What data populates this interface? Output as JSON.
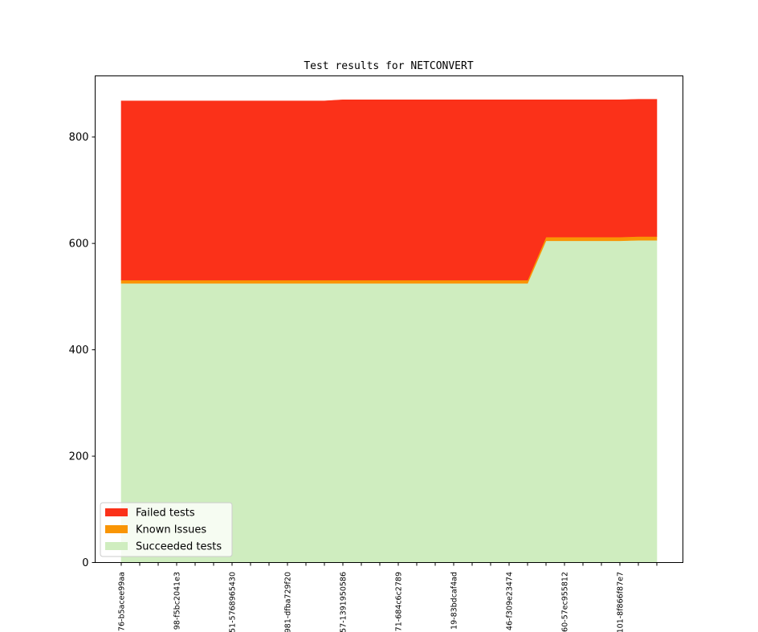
{
  "chart_data": {
    "type": "area",
    "stacked": true,
    "title": "Test results for NETCONVERT",
    "xlabel": "",
    "ylabel": "",
    "ylim": [
      0,
      915
    ],
    "yticks": [
      0,
      200,
      400,
      600,
      800
    ],
    "x_count": 30,
    "x_tick_labels": [
      {
        "index": 0,
        "label": "76-b5acee99aa"
      },
      {
        "index": 3,
        "label": "98-f5bc2041e3"
      },
      {
        "index": 6,
        "label": "51-5768965430"
      },
      {
        "index": 9,
        "label": "981-dfba729f20"
      },
      {
        "index": 12,
        "label": "57-1391950586"
      },
      {
        "index": 15,
        "label": "71-684c6c2789"
      },
      {
        "index": 18,
        "label": "19-83bdcaf4ad"
      },
      {
        "index": 21,
        "label": "46-f309e23474"
      },
      {
        "index": 24,
        "label": "60-57ec955812"
      },
      {
        "index": 27,
        "label": "101-8f866f87e7"
      }
    ],
    "legend_position": "bottom-left",
    "series": [
      {
        "name": "Succeeded tests",
        "color": "#cfedbf",
        "values": [
          525,
          525,
          525,
          525,
          525,
          525,
          525,
          525,
          525,
          525,
          525,
          525,
          525,
          525,
          525,
          525,
          525,
          525,
          525,
          525,
          525,
          525,
          525,
          605,
          605,
          605,
          605,
          605,
          606,
          606
        ]
      },
      {
        "name": "Known Issues",
        "color": "#f99505",
        "values": [
          6,
          6,
          6,
          6,
          6,
          6,
          6,
          6,
          6,
          6,
          6,
          6,
          6,
          6,
          6,
          6,
          6,
          6,
          6,
          6,
          6,
          6,
          6,
          7,
          7,
          7,
          7,
          7,
          7,
          7
        ]
      },
      {
        "name": "Failed tests",
        "color": "#fb3119",
        "values": [
          337,
          337,
          337,
          337,
          337,
          337,
          337,
          337,
          337,
          337,
          337,
          337,
          339,
          339,
          339,
          339,
          339,
          339,
          339,
          339,
          339,
          339,
          339,
          258,
          258,
          258,
          258,
          258,
          258,
          258
        ]
      }
    ],
    "legend": [
      "Failed tests",
      "Known Issues",
      "Succeeded tests"
    ]
  }
}
